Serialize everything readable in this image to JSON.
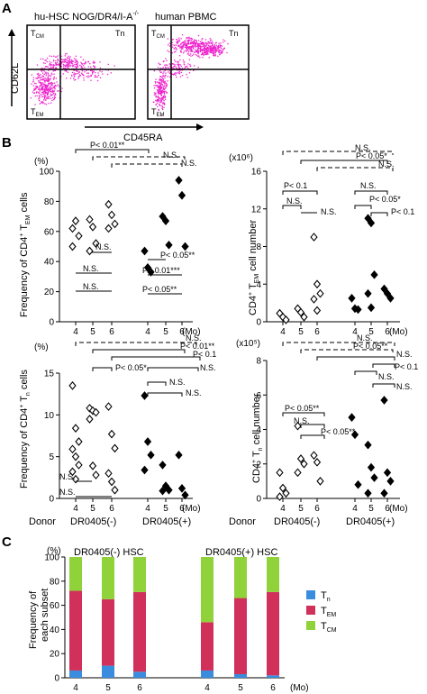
{
  "panel_labels": {
    "a": "A",
    "b": "B",
    "c": "C"
  },
  "flow": {
    "ylabel": "CD62L",
    "xlabel": "CD45RA",
    "dot_color": "#ee22cc",
    "plots": [
      {
        "title": "hu-HSC NOG/DR4/I-A",
        "title_sup": "-/-",
        "q_cm": "T",
        "q_cm_sub": "CM",
        "q_n": "Tn",
        "q_em": "T",
        "q_em_sub": "EM"
      },
      {
        "title": "human PBMC",
        "q_cm": "T",
        "q_cm_sub": "CM",
        "q_n": "Tn",
        "q_em": "T",
        "q_em_sub": "EM"
      }
    ]
  },
  "labels": {
    "donor": "Donor",
    "group_neg": "DR0405(-)",
    "group_pos": "DR0405(+)",
    "mo": "(Mo)",
    "pct": "(%)"
  },
  "chart_data": [
    {
      "id": "tem-freq",
      "type": "scatter",
      "ylabel": "Frequency of CD4+ TEM cells",
      "ylim": [
        0,
        100
      ],
      "yticks": [
        "0",
        "20",
        "40",
        "60",
        "80",
        "100"
      ],
      "unit": "(%)",
      "categories": [
        "4",
        "5",
        "6",
        "4",
        "5",
        "6"
      ],
      "series": [
        {
          "name": "DR0405(-)",
          "marker": "open-diamond",
          "points": {
            "4": [
              62,
              67,
              57,
              50
            ],
            "5": [
              68,
              63,
              52,
              47
            ],
            "6": [
              78,
              71,
              65,
              62
            ]
          }
        },
        {
          "name": "DR0405(+)",
          "marker": "filled-diamond",
          "points": {
            "4": [
              47,
              36,
              33
            ],
            "5": [
              70,
              67,
              51
            ],
            "6": [
              94,
              84,
              50
            ]
          }
        }
      ],
      "annotations": [
        "P< 0.01**",
        "N.S.",
        "N.S.",
        "N.S.",
        "N.S.",
        "N.S.",
        "P< 0.05**",
        "P< 0.01***",
        "P< 0.05**"
      ]
    },
    {
      "id": "tem-count",
      "type": "scatter",
      "ylabel": "CD4+ TEM cell number",
      "ylim": [
        0,
        16
      ],
      "yticks": [
        "0",
        "4",
        "8",
        "12",
        "16"
      ],
      "unit": "(x10⁶)",
      "categories": [
        "4",
        "5",
        "6",
        "4",
        "5",
        "6"
      ],
      "series": [
        {
          "name": "DR0405(-)",
          "marker": "open-diamond",
          "points": {
            "4": [
              0.9,
              0.5,
              0.2
            ],
            "5": [
              1.4,
              1.0,
              0.5
            ],
            "6": [
              9.0,
              4.0,
              3.0,
              2.4,
              1.2
            ]
          }
        },
        {
          "name": "DR0405(+)",
          "marker": "filled-diamond",
          "points": {
            "4": [
              2.5,
              1.4,
              1.3
            ],
            "5": [
              11.0,
              10.5,
              5.0,
              3.0,
              1.5
            ],
            "6": [
              3.5,
              3.0,
              2.5
            ]
          }
        }
      ],
      "annotations": [
        "N.S.",
        "P< 0.05*",
        "N.S.",
        "P< 0.1",
        "N.S.",
        "N.S.",
        "P< 0.05*",
        "P< 0.1"
      ]
    },
    {
      "id": "tn-freq",
      "type": "scatter",
      "ylabel": "Frequency of CD4+ Tn cells",
      "ylim": [
        0,
        15
      ],
      "yticks": [
        "0",
        "5",
        "10",
        "15"
      ],
      "unit": "(%)",
      "categories": [
        "4",
        "5",
        "6",
        "4",
        "5",
        "6"
      ],
      "series": [
        {
          "name": "DR0405(-)",
          "marker": "open-diamond",
          "points": {
            "4": [
              13.5,
              8.4,
              6.8,
              5.9,
              5.0,
              4.0,
              3.2,
              2.3
            ],
            "5": [
              10.8,
              10.5,
              10.3,
              9.5,
              3.9,
              2.8
            ],
            "6": [
              11.0,
              7.7,
              6.0,
              3.0,
              2.0,
              1.0
            ]
          }
        },
        {
          "name": "DR0405(+)",
          "marker": "filled-diamond",
          "points": {
            "4": [
              12.3,
              6.8,
              5.2,
              3.4
            ],
            "5": [
              4.0,
              1.5,
              1.0,
              0.9
            ],
            "6": [
              5.2,
              1.2,
              0.4
            ]
          }
        }
      ],
      "annotations": [
        "N.S.",
        "P< 0.01**",
        "P< 0.1",
        "P< 0.05*",
        "N.S.",
        "N.S.",
        "N.S.",
        "N.S.",
        "N.S."
      ]
    },
    {
      "id": "tn-count",
      "type": "scatter",
      "ylabel": "CD4+ Tn cell number",
      "ylim": [
        0,
        8
      ],
      "yticks": [
        "0",
        "2",
        "4",
        "6",
        "8"
      ],
      "unit": "(x10⁵)",
      "categories": [
        "4",
        "5",
        "6",
        "4",
        "5",
        "6"
      ],
      "series": [
        {
          "name": "DR0405(-)",
          "marker": "open-diamond",
          "points": {
            "4": [
              1.5,
              0.6,
              0.3,
              0.1
            ],
            "5": [
              4.2,
              2.3,
              2.0,
              1.5
            ],
            "6": [
              2.5,
              2.1,
              1.0
            ]
          }
        },
        {
          "name": "DR0405(+)",
          "marker": "filled-diamond",
          "points": {
            "4": [
              4.7,
              3.7,
              0.8
            ],
            "5": [
              3.1,
              1.8,
              1.2,
              0.3
            ],
            "6": [
              5.7,
              1.5,
              1.0,
              0.3
            ]
          }
        }
      ],
      "annotations": [
        "N.S.",
        "P< 0.05**",
        "N.S.",
        "P< 0.1",
        "P< 0.05**",
        "N.S.",
        "P< 0.05**",
        "N.S.",
        "N.S."
      ]
    },
    {
      "id": "subset-stack",
      "type": "bar",
      "stacked": true,
      "ylabel": "Frequency of each subset",
      "ylim": [
        0,
        100
      ],
      "yticks": [
        "0",
        "20",
        "40",
        "60",
        "80",
        "100"
      ],
      "unit": "(%)",
      "groups": [
        "DR0405(-) HSC",
        "DR0405(+) HSC"
      ],
      "categories": [
        "4",
        "5",
        "6",
        "4",
        "5",
        "6"
      ],
      "series": [
        {
          "name": "Tn",
          "color": "#3a8dde",
          "values": [
            6,
            10,
            5,
            6,
            3,
            2
          ]
        },
        {
          "name": "TEM",
          "color": "#d0305a",
          "values": [
            66,
            55,
            66,
            40,
            63,
            69
          ]
        },
        {
          "name": "TCM",
          "color": "#8fd23a",
          "values": [
            28,
            35,
            29,
            54,
            34,
            29
          ]
        }
      ],
      "legend": [
        {
          "main": "T",
          "sub": "n",
          "color": "#3a8dde"
        },
        {
          "main": "T",
          "sub": "EM",
          "color": "#d0305a"
        },
        {
          "main": "T",
          "sub": "CM",
          "color": "#8fd23a"
        }
      ]
    }
  ]
}
